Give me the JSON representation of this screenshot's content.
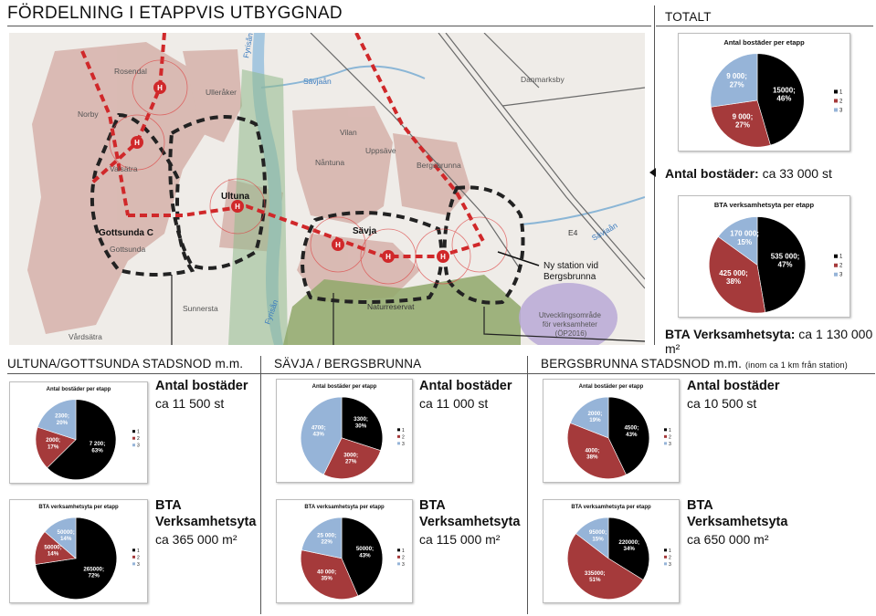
{
  "page": {
    "title": "FÖRDELNING I ETAPPVIS UTBYGGNAD",
    "totalt_title": "TOTALT",
    "sections": [
      {
        "title": "ULTUNA/GOTTSUNDA STADSNOD m.m.",
        "note": ""
      },
      {
        "title": "SÄVJA / BERGSBRUNNA",
        "note": ""
      },
      {
        "title": "BERGSBRUNNA STADSNOD m.m.",
        "note": "(inom ca 1 km från station)"
      }
    ]
  },
  "map": {
    "place_labels": [
      "Rosendal",
      "Norby",
      "Ulleråker",
      "Valsätra",
      "Ultuna",
      "Gottsunda C",
      "Gottsunda",
      "Sunnersta",
      "Vårdsätra",
      "Vilan",
      "Nåntuna",
      "Uppsäve",
      "Bergsbrunna",
      "Sävja",
      "Danmarksby",
      "Naturreservat"
    ],
    "water_labels": [
      "Fyrisån",
      "Sävjaån",
      "Sävjaån"
    ],
    "road_label": "E4",
    "station_marker": "H",
    "annotation_station": "Ny station vid\nBergsbrunna",
    "annotation_development": "Utvecklingsområde\nför verksamheter\n(ÖP2016)"
  },
  "totals": {
    "bostader_label": "Antal bostäder:",
    "bostader_value": "ca 33 000 st",
    "bta_label": "BTA Verksamhetsyta:",
    "bta_value": "ca 1 130 000 m²"
  },
  "stats": [
    {
      "bostader_head": "Antal bostäder",
      "bostader_value": "ca 11 500 st",
      "bta_head1": "BTA",
      "bta_head2": "Verksamhetsyta",
      "bta_value": "ca 365 000 m²"
    },
    {
      "bostader_head": "Antal bostäder",
      "bostader_value": "ca 11 000 st",
      "bta_head1": "BTA",
      "bta_head2": "Verksamhetsyta",
      "bta_value": "ca 115 000 m²"
    },
    {
      "bostader_head": "Antal bostäder",
      "bostader_value": "ca 10 500 st",
      "bta_head1": "BTA",
      "bta_head2": "Verksamhetsyta",
      "bta_value": "ca 650 000 m²"
    }
  ],
  "colors": {
    "1": "#000000",
    "2": "#a53a3b",
    "3": "#96b4d8"
  },
  "chart_data": [
    {
      "id": "total-bostader",
      "type": "pie",
      "title": "Antal bostäder per etapp",
      "categories": [
        "1",
        "2",
        "3"
      ],
      "values": [
        15000,
        9000,
        9000
      ],
      "labels": [
        "15000;\n46%",
        "9 000;\n27%",
        "9 000;\n27%"
      ]
    },
    {
      "id": "total-bta",
      "type": "pie",
      "title": "BTA verksamhetsyta per etapp",
      "categories": [
        "1",
        "2",
        "3"
      ],
      "values": [
        535000,
        425000,
        170000
      ],
      "labels": [
        "535 000;\n47%",
        "425 000;\n38%",
        "170 000;\n15%"
      ]
    },
    {
      "id": "ultuna-bostader",
      "type": "pie",
      "title": "Antal bostäder per etapp",
      "categories": [
        "1",
        "2",
        "3"
      ],
      "values": [
        7200,
        2000,
        2300
      ],
      "labels": [
        "7 200;\n63%",
        "2000;\n17%",
        "2300;\n20%"
      ]
    },
    {
      "id": "ultuna-bta",
      "type": "pie",
      "title": "BTA verksamhetsyta per etapp",
      "categories": [
        "1",
        "2",
        "3"
      ],
      "values": [
        265000,
        50000,
        50000
      ],
      "labels": [
        "265000;\n72%",
        "50000;\n14%",
        "50000;\n14%"
      ]
    },
    {
      "id": "savja-bostader",
      "type": "pie",
      "title": "Antal bostäder per etapp",
      "categories": [
        "1",
        "2",
        "3"
      ],
      "values": [
        3300,
        3000,
        4700
      ],
      "labels": [
        "3300;\n30%",
        "3000;\n27%",
        "4700;\n43%"
      ]
    },
    {
      "id": "savja-bta",
      "type": "pie",
      "title": "BTA verksamhetsyta per etapp",
      "categories": [
        "1",
        "2",
        "3"
      ],
      "values": [
        50000,
        40000,
        25000
      ],
      "labels": [
        "50000;\n43%",
        "40 000;\n35%",
        "25 000;\n22%"
      ]
    },
    {
      "id": "bergsbrunna-bostader",
      "type": "pie",
      "title": "Antal bostäder per etapp",
      "categories": [
        "1",
        "2",
        "3"
      ],
      "values": [
        4500,
        4000,
        2000
      ],
      "labels": [
        "4500;\n43%",
        "4000;\n38%",
        "2000;\n19%"
      ]
    },
    {
      "id": "bergsbrunna-bta",
      "type": "pie",
      "title": "BTA verksamhetsyta per etapp",
      "categories": [
        "1",
        "2",
        "3"
      ],
      "values": [
        220000,
        335000,
        95000
      ],
      "labels": [
        "220000;\n34%",
        "335000;\n51%",
        "95000;\n15%"
      ]
    }
  ]
}
